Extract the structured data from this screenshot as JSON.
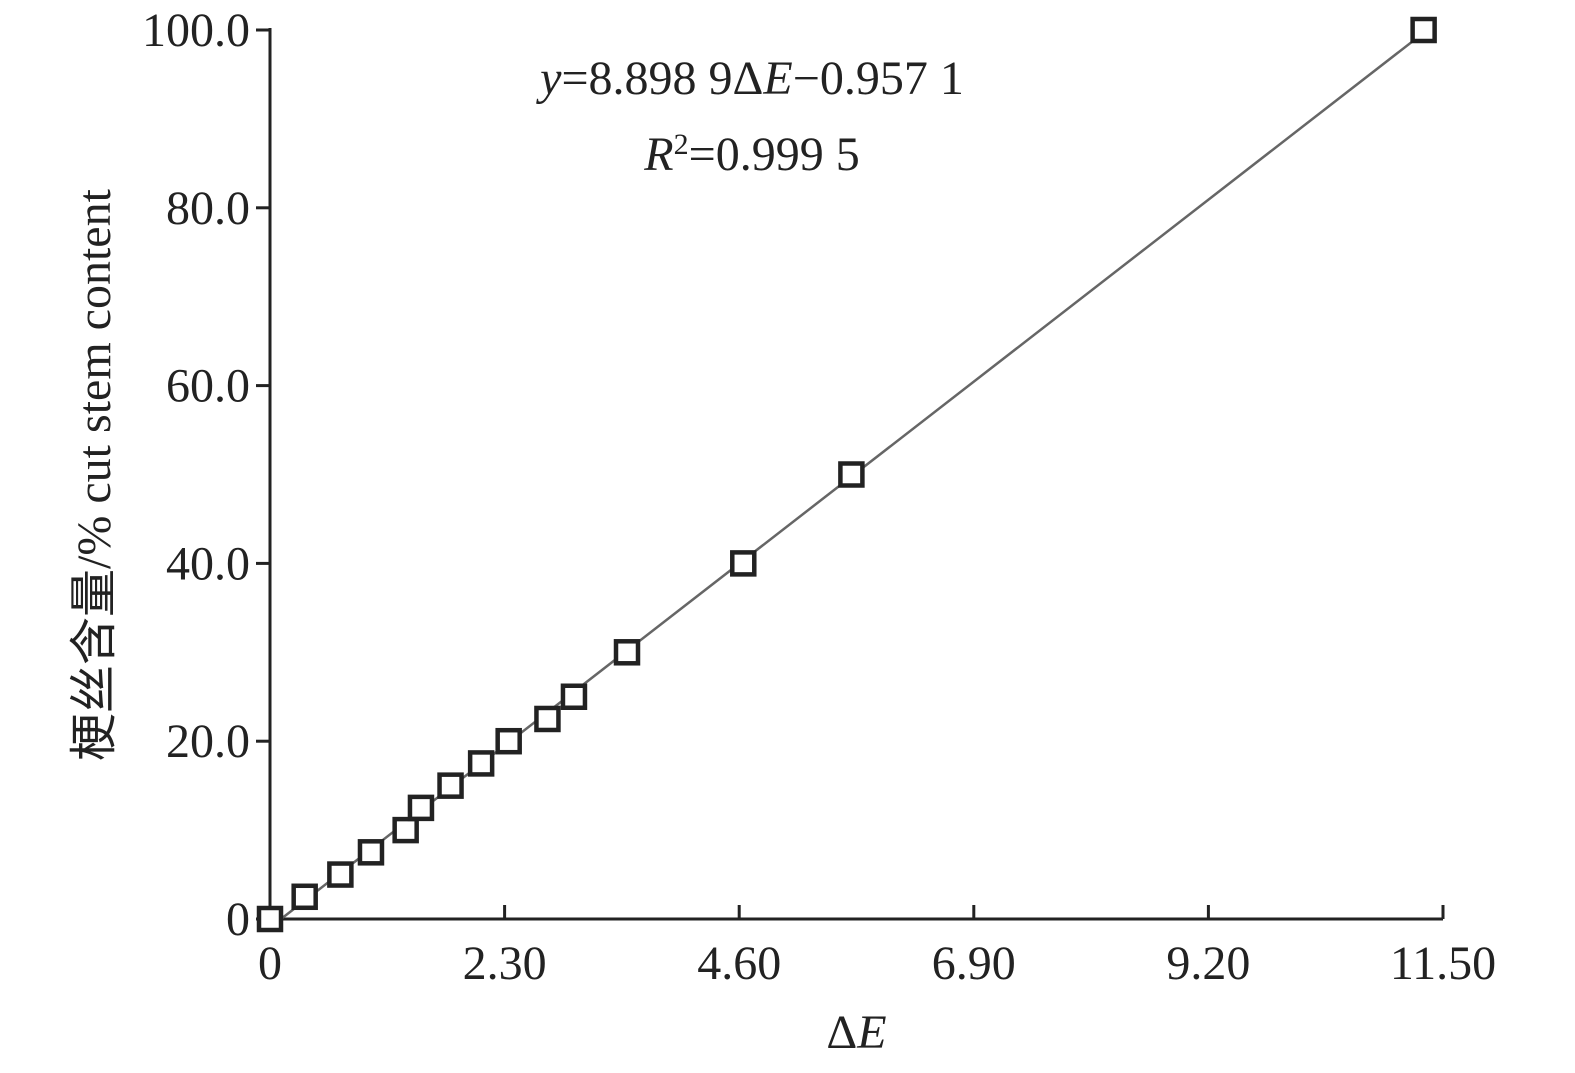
{
  "chart_data": {
    "type": "scatter",
    "x_label": [
      {
        "text": "Δ"
      },
      {
        "text": "E",
        "italic": true
      }
    ],
    "y_label": "梗丝含量/% cut stem content",
    "annotations": [
      [
        {
          "text": "y",
          "italic": true
        },
        {
          "text": "=8.898 9Δ"
        },
        {
          "text": "E",
          "italic": true
        },
        {
          "text": "−0.957 1"
        }
      ],
      [
        {
          "text": "R",
          "italic": true
        },
        {
          "text": "2",
          "sup": true
        },
        {
          "text": "=0.999 5"
        }
      ]
    ],
    "trendline": {
      "slope": 8.8989,
      "intercept": -0.9571
    },
    "series": [
      {
        "name": "cut stem",
        "color": "#222222",
        "x": [
          0,
          0.34,
          0.69,
          0.99,
          1.33,
          1.48,
          1.77,
          2.07,
          2.34,
          2.72,
          2.98,
          3.5,
          4.64,
          5.7,
          11.31
        ],
        "values": [
          0,
          2.5,
          5,
          7.5,
          10,
          12.5,
          15,
          17.5,
          20,
          22.5,
          25,
          30,
          40,
          50,
          100
        ]
      }
    ],
    "xlim": [
      0,
      11.5
    ],
    "xticks": [
      0,
      {
        "value": 2.3,
        "label": "2.30"
      },
      {
        "value": 4.6,
        "label": "4.60"
      },
      {
        "value": 6.9,
        "label": "6.90"
      },
      {
        "value": 9.2,
        "label": "9.20"
      },
      {
        "value": 11.5,
        "label": "11.50"
      }
    ],
    "ylim": [
      0,
      100
    ],
    "yticks": [
      0,
      {
        "value": 20,
        "label": "20.0"
      },
      {
        "value": 40,
        "label": "40.0"
      },
      {
        "value": 60,
        "label": "60.0"
      },
      {
        "value": 80,
        "label": "80.0"
      },
      {
        "value": 100,
        "label": "100.0"
      }
    ]
  }
}
